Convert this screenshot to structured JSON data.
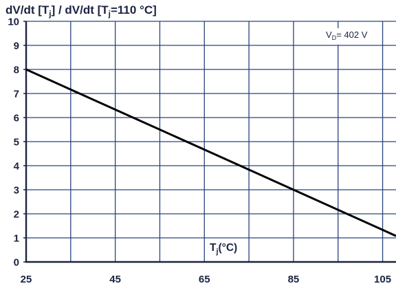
{
  "chart_data": {
    "type": "line",
    "title": [
      {
        "text": "dV/dt [T"
      },
      {
        "text": "j",
        "sub": true
      },
      {
        "text": "] / dV/dt [T"
      },
      {
        "text": "j",
        "sub": true
      },
      {
        "text": "=110 °C]"
      }
    ],
    "xlabel": [
      {
        "text": "T"
      },
      {
        "text": "j",
        "sub": true
      },
      {
        "text": "(°C)"
      }
    ],
    "annotation": [
      {
        "text": "V"
      },
      {
        "text": "D",
        "sub": true
      },
      {
        "text": "= 402 V"
      }
    ],
    "xlim": [
      25,
      108
    ],
    "ylim": [
      0,
      10
    ],
    "x_ticks": [
      25,
      45,
      65,
      85,
      105
    ],
    "y_ticks": [
      0,
      1,
      2,
      3,
      4,
      5,
      6,
      7,
      8,
      9,
      10
    ],
    "x_gridlines": [
      25,
      35,
      45,
      55,
      65,
      75,
      85,
      95,
      105
    ],
    "grid": true,
    "series": [
      {
        "x": [
          25,
          45,
          65,
          85,
          105,
          108
        ],
        "y": [
          8.0,
          6.33,
          4.67,
          3.0,
          1.33,
          1.08
        ]
      }
    ]
  },
  "colors": {
    "text": "#1b2340",
    "grid": "#27437d",
    "axis": "#1b2340",
    "line": "#000000"
  }
}
